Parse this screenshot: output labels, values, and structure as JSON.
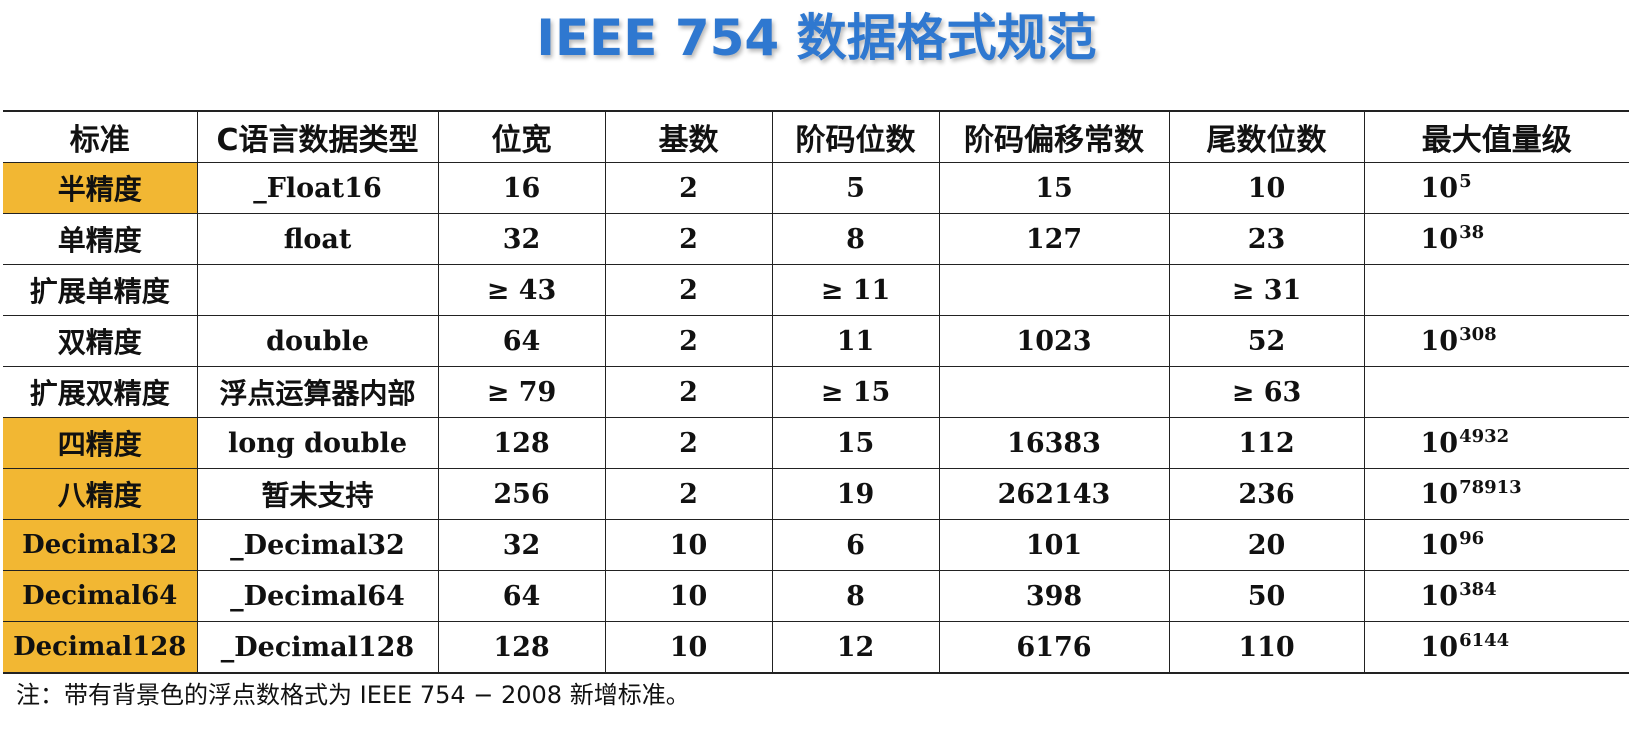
{
  "page": {
    "title": "IEEE 754 数据格式规范",
    "note": "注：带有背景色的浮点数格式为 IEEE 754 − 2008 新增标准。"
  },
  "colors": {
    "title": "#2f78d0",
    "highlight": "#f2b733"
  },
  "table": {
    "headers": [
      "标准",
      "C语言数据类型",
      "位宽",
      "基数",
      "阶码位数",
      "阶码偏移常数",
      "尾数位数",
      "最大值量级"
    ],
    "rows": [
      {
        "name": "半精度",
        "highlighted": true,
        "ctype": "_Float16",
        "width": "16",
        "radix": "2",
        "exp_bits": "5",
        "bias": "15",
        "mantissa": "10",
        "max_base": "10",
        "max_exp": "5"
      },
      {
        "name": "单精度",
        "highlighted": false,
        "ctype": "float",
        "width": "32",
        "radix": "2",
        "exp_bits": "8",
        "bias": "127",
        "mantissa": "23",
        "max_base": "10",
        "max_exp": "38"
      },
      {
        "name": "扩展单精度",
        "highlighted": false,
        "ctype": "",
        "width": "≥ 43",
        "radix": "2",
        "exp_bits": "≥ 11",
        "bias": "",
        "mantissa": "≥ 31",
        "max_base": "",
        "max_exp": ""
      },
      {
        "name": "双精度",
        "highlighted": false,
        "ctype": "double",
        "width": "64",
        "radix": "2",
        "exp_bits": "11",
        "bias": "1023",
        "mantissa": "52",
        "max_base": "10",
        "max_exp": "308"
      },
      {
        "name": "扩展双精度",
        "highlighted": false,
        "ctype": "浮点运算器内部",
        "width": "≥ 79",
        "radix": "2",
        "exp_bits": "≥ 15",
        "bias": "",
        "mantissa": "≥ 63",
        "max_base": "",
        "max_exp": ""
      },
      {
        "name": "四精度",
        "highlighted": true,
        "ctype": "long double",
        "width": "128",
        "radix": "2",
        "exp_bits": "15",
        "bias": "16383",
        "mantissa": "112",
        "max_base": "10",
        "max_exp": "4932"
      },
      {
        "name": "八精度",
        "highlighted": true,
        "ctype": "暂未支持",
        "width": "256",
        "radix": "2",
        "exp_bits": "19",
        "bias": "262143",
        "mantissa": "236",
        "max_base": "10",
        "max_exp": "78913"
      },
      {
        "name": "Decimal32",
        "highlighted": true,
        "ctype": "_Decimal32",
        "width": "32",
        "radix": "10",
        "exp_bits": "6",
        "bias": "101",
        "mantissa": "20",
        "max_base": "10",
        "max_exp": "96"
      },
      {
        "name": "Decimal64",
        "highlighted": true,
        "ctype": "_Decimal64",
        "width": "64",
        "radix": "10",
        "exp_bits": "8",
        "bias": "398",
        "mantissa": "50",
        "max_base": "10",
        "max_exp": "384"
      },
      {
        "name": "Decimal128",
        "highlighted": true,
        "ctype": "_Decimal128",
        "width": "128",
        "radix": "10",
        "exp_bits": "12",
        "bias": "6176",
        "mantissa": "110",
        "max_base": "10",
        "max_exp": "6144"
      }
    ]
  }
}
